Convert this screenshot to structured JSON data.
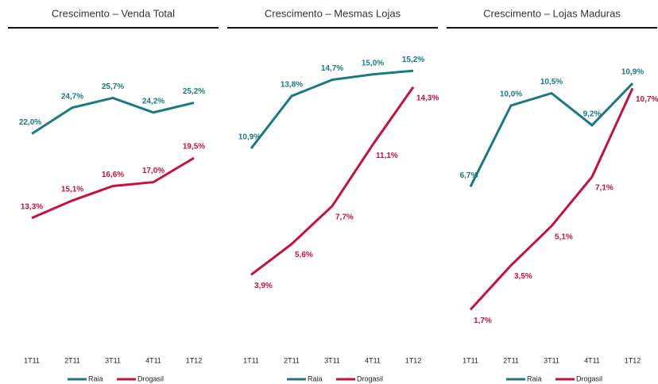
{
  "chart_data": [
    {
      "type": "line",
      "title": "Crescimento – Venda Total",
      "categories": [
        "1T11",
        "2T11",
        "3T11",
        "4T11",
        "1T12"
      ],
      "series": [
        {
          "name": "Raia",
          "color": "#1a7a80",
          "values": [
            22.0,
            24.7,
            25.7,
            24.2,
            25.2
          ],
          "value_labels": [
            "22,0%",
            "24,7%",
            "25,7%",
            "24,2%",
            "25,2%"
          ]
        },
        {
          "name": "Drogasil",
          "color": "#c8103e",
          "values": [
            13.3,
            15.1,
            16.6,
            17.0,
            19.5
          ],
          "value_labels": [
            "13,3%",
            "15,1%",
            "16,6%",
            "17,0%",
            "19,5%"
          ]
        }
      ],
      "ylim": [
        0,
        30
      ]
    },
    {
      "type": "line",
      "title": "Crescimento – Mesmas Lojas",
      "categories": [
        "1T11",
        "2T11",
        "3T11",
        "4T11",
        "1T12"
      ],
      "series": [
        {
          "name": "Raia",
          "color": "#1a7a80",
          "values": [
            10.9,
            13.8,
            14.7,
            15.0,
            15.2
          ],
          "value_labels": [
            "10,9%",
            "13,8%",
            "14,7%",
            "15,0%",
            "15,2%"
          ]
        },
        {
          "name": "Drogasil",
          "color": "#c8103e",
          "values": [
            3.9,
            5.6,
            7.7,
            11.1,
            14.3
          ],
          "value_labels": [
            "3,9%",
            "5,6%",
            "7,7%",
            "11,1%",
            "14,3%"
          ]
        }
      ],
      "ylim": [
        0,
        16
      ]
    },
    {
      "type": "line",
      "title": "Crescimento – Lojas Maduras",
      "categories": [
        "1T11",
        "2T11",
        "3T11",
        "4T11",
        "1T12"
      ],
      "series": [
        {
          "name": "Raia",
          "color": "#1a7a80",
          "values": [
            6.7,
            10.0,
            10.5,
            9.2,
            10.9
          ],
          "value_labels": [
            "6,7%",
            "10,0%",
            "10,5%",
            "9,2%",
            "10,9%"
          ]
        },
        {
          "name": "Drogasil",
          "color": "#c8103e",
          "values": [
            1.7,
            3.5,
            5.1,
            7.1,
            10.7
          ],
          "value_labels": [
            "1,7%",
            "3,5%",
            "5,1%",
            "7,1%",
            "10,7%"
          ]
        }
      ],
      "ylim": [
        0,
        12
      ]
    }
  ]
}
